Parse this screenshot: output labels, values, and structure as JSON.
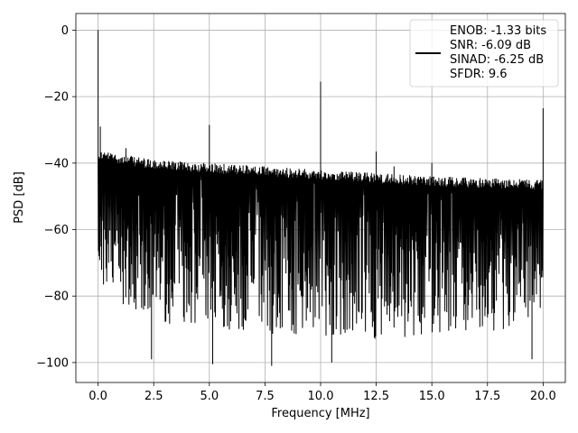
{
  "chart_data": {
    "type": "line",
    "xlabel": "Frequency [MHz]",
    "ylabel": "PSD [dB]",
    "xlim": [
      -1.0,
      21.0
    ],
    "ylim": [
      -106,
      5
    ],
    "x_ticks": [
      0.0,
      2.5,
      5.0,
      7.5,
      10.0,
      12.5,
      15.0,
      17.5,
      20.0
    ],
    "x_tick_labels": [
      "0.0",
      "2.5",
      "5.0",
      "7.5",
      "10.0",
      "12.5",
      "15.0",
      "17.5",
      "20.0"
    ],
    "y_ticks": [
      0,
      -20,
      -40,
      -60,
      -80,
      -100
    ],
    "y_tick_labels": [
      "0",
      "−20",
      "−40",
      "−60",
      "−80",
      "−100"
    ],
    "grid": true,
    "legend_position": "top-right",
    "line_color": "#000000",
    "series": [
      {
        "name": "ENOB: -1.33 bits\nSNR: -6.09 dB\nSINAD: -6.25 dB\nSFDR: 9.6",
        "noise_band": {
          "x_range": [
            0.0,
            20.0
          ],
          "upper_envelope": [
            [
              0.0,
              -36
            ],
            [
              2.5,
              -39
            ],
            [
              5.0,
              -40
            ],
            [
              7.5,
              -41
            ],
            [
              10.0,
              -42
            ],
            [
              12.5,
              -43
            ],
            [
              15.0,
              -44
            ],
            [
              17.5,
              -44.5
            ],
            [
              20.0,
              -45
            ]
          ],
          "lower_envelope": [
            [
              0.0,
              -78
            ],
            [
              2.5,
              -88
            ],
            [
              5.0,
              -90
            ],
            [
              7.5,
              -92
            ],
            [
              10.0,
              -93
            ],
            [
              12.5,
              -93
            ],
            [
              15.0,
              -92
            ],
            [
              17.5,
              -92
            ],
            [
              20.0,
              -85
            ]
          ]
        },
        "spurs": [
          {
            "x": 0.0,
            "y": 0
          },
          {
            "x": 0.1,
            "y": -29
          },
          {
            "x": 1.25,
            "y": -35.5
          },
          {
            "x": 5.0,
            "y": -28.5
          },
          {
            "x": 10.0,
            "y": -15.5
          },
          {
            "x": 12.5,
            "y": -36.5
          },
          {
            "x": 13.3,
            "y": -41
          },
          {
            "x": 15.0,
            "y": -40
          },
          {
            "x": 20.0,
            "y": -23.5
          }
        ],
        "dips": [
          {
            "x": 2.4,
            "y": -99
          },
          {
            "x": 5.15,
            "y": -100.5
          },
          {
            "x": 7.8,
            "y": -101
          },
          {
            "x": 10.5,
            "y": -100
          },
          {
            "x": 19.5,
            "y": -99
          }
        ]
      }
    ]
  }
}
